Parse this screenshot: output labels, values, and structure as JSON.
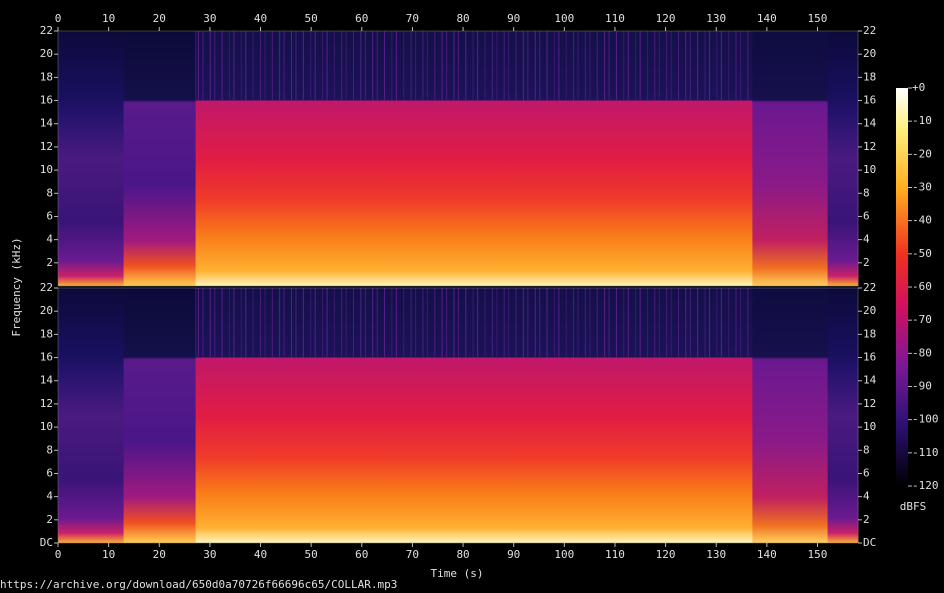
{
  "chart_data": [
    {
      "type": "spectrogram",
      "xlim": [
        0,
        158
      ],
      "xticks": [
        0,
        10,
        20,
        30,
        40,
        50,
        60,
        70,
        80,
        90,
        100,
        110,
        120,
        130,
        140,
        150
      ],
      "ylim": [
        0,
        22
      ],
      "yticks": [
        2,
        4,
        6,
        8,
        10,
        12,
        14,
        16,
        18,
        20,
        22
      ]
    },
    {
      "type": "spectrogram",
      "x_label": "Time (s)",
      "y_label": "Frequency (kHz)",
      "xlim": [
        0,
        158
      ],
      "xticks": [
        0,
        10,
        20,
        30,
        40,
        50,
        60,
        70,
        80,
        90,
        100,
        110,
        120,
        130,
        140,
        150
      ],
      "ylim": [
        0,
        22
      ],
      "yticks": [
        {
          "value": 0,
          "label": "DC"
        },
        2,
        4,
        6,
        8,
        10,
        12,
        14,
        16,
        18,
        20,
        22
      ],
      "colorbar": {
        "label": "dBFS",
        "lim": [
          -120,
          0
        ],
        "ticks": [
          {
            "value": 0,
            "label": "+0"
          },
          -10,
          -20,
          -30,
          -40,
          -50,
          -60,
          -70,
          -80,
          -90,
          -100,
          -110,
          -120
        ]
      }
    }
  ],
  "source": "https://archive.org/download/650d0a70726f66696c65/COLLAR.mp3"
}
